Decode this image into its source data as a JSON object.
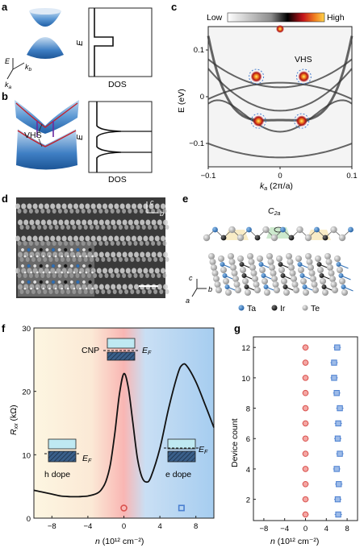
{
  "panels": {
    "a": {
      "label": "a",
      "dos_axis": {
        "y": "E",
        "x": "DOS"
      },
      "axes3d": {
        "E": "E",
        "kb": "k",
        "kb_sub": "b",
        "ka": "k",
        "ka_sub": "a"
      }
    },
    "b": {
      "label": "b",
      "annotation": "VHS",
      "dos_axis": {
        "y": "E",
        "x": "DOS"
      }
    },
    "c": {
      "label": "c",
      "colorbar": {
        "low": "Low",
        "high": "High"
      },
      "annotation": "VHS",
      "ylabel": "E (eV)",
      "xlabel_main": "k",
      "xlabel_sub": "a",
      "xlabel_tail": " (2π/a)"
    },
    "d": {
      "label": "d",
      "axis_c": "c",
      "axis_b": "b"
    },
    "e": {
      "label": "e",
      "symmetry": "C",
      "symmetry_sub": "2a",
      "axes": {
        "c": "c",
        "b": "b",
        "a": "a"
      },
      "legend": [
        {
          "name": "Ta",
          "color": "#2f6fb5"
        },
        {
          "name": "Ir",
          "color": "#1a1a1a"
        },
        {
          "name": "Te",
          "color": "#a9a9a9"
        }
      ]
    },
    "f": {
      "label": "f",
      "cnp": "CNP",
      "ef_main": "E",
      "ef_sub": "F",
      "h_dope": "h dope",
      "e_dope": "e dope",
      "ylabel_main": "R",
      "ylabel_sub": "xx",
      "ylabel_tail": " (kΩ)",
      "xlabel_main": "n",
      "xlabel_tail": " (10¹² cm⁻²)"
    },
    "g": {
      "label": "g",
      "ylabel": "Device count",
      "xlabel_main": "n",
      "xlabel_tail": " (10¹² cm⁻²)"
    }
  },
  "chart_data": [
    {
      "panel": "c",
      "type": "heatmap",
      "xlim": [
        -0.1,
        0.1
      ],
      "ylim": [
        -0.15,
        0.15
      ],
      "x_ticks": [
        "−0.1",
        "0",
        "0.1"
      ],
      "y_ticks": [
        "0.1",
        "0",
        "−0.1"
      ],
      "x_tick_values": [
        -0.1,
        0,
        0.1
      ],
      "y_tick_values": [
        0.1,
        0,
        -0.1
      ],
      "vhs_points": [
        {
          "k": -0.033,
          "E": 0.043
        },
        {
          "k": 0.033,
          "E": 0.043
        },
        {
          "k": -0.03,
          "E": -0.052
        },
        {
          "k": 0.03,
          "E": -0.052
        }
      ]
    },
    {
      "panel": "f",
      "type": "line",
      "xlim": [
        -10,
        10
      ],
      "ylim": [
        0,
        30
      ],
      "x_ticks": [
        "−8",
        "−4",
        "0",
        "4",
        "8"
      ],
      "x_tick_values": [
        -8,
        -4,
        0,
        4,
        8
      ],
      "y_ticks": [
        "0",
        "10",
        "20",
        "30"
      ],
      "y_tick_values": [
        0,
        10,
        20,
        30
      ],
      "x": [
        -10,
        -9,
        -8,
        -7,
        -6,
        -5,
        -4,
        -3,
        -2.5,
        -2,
        -1.5,
        -1,
        -0.5,
        0,
        0.5,
        1,
        1.5,
        2,
        2.5,
        3,
        4,
        5,
        6,
        6.5,
        7,
        8,
        9,
        10
      ],
      "y": [
        4.4,
        4.1,
        3.8,
        3.5,
        3.4,
        3.4,
        3.5,
        3.9,
        4.5,
        5.8,
        8.5,
        13.5,
        19.5,
        22.8,
        20.5,
        15.0,
        9.5,
        6.5,
        5.7,
        6.5,
        11.0,
        17.5,
        22.8,
        24.2,
        24.0,
        21.5,
        18.0,
        14.3
      ],
      "markers": [
        {
          "x": 0,
          "y": 1.6,
          "color": "#d9534f",
          "shape": "circle"
        },
        {
          "x": 6.4,
          "y": 1.6,
          "color": "#4a7fd0",
          "shape": "square"
        }
      ]
    },
    {
      "panel": "g",
      "type": "scatter",
      "xlim": [
        -10,
        10
      ],
      "ylim": [
        0.6,
        12.7
      ],
      "x_ticks": [
        "−8",
        "−4",
        "0",
        "4",
        "8"
      ],
      "x_tick_values": [
        -8,
        -4,
        0,
        4,
        8
      ],
      "y_ticks": [
        "2",
        "4",
        "6",
        "8",
        "10",
        "12"
      ],
      "y_tick_values": [
        2,
        4,
        6,
        8,
        10,
        12
      ],
      "series": [
        {
          "color": "#d9534f",
          "shape": "circle",
          "points": [
            [
              0,
              1
            ],
            [
              0,
              2
            ],
            [
              0,
              3
            ],
            [
              0,
              4
            ],
            [
              0,
              5
            ],
            [
              0,
              6
            ],
            [
              0,
              7
            ],
            [
              0,
              8
            ],
            [
              0,
              9
            ],
            [
              0,
              10
            ],
            [
              0,
              11
            ],
            [
              0,
              12
            ]
          ],
          "err": 0.6
        },
        {
          "color": "#4a7fd0",
          "shape": "square",
          "points": [
            [
              6.3,
              1
            ],
            [
              6.2,
              2
            ],
            [
              6.4,
              3
            ],
            [
              6.0,
              4
            ],
            [
              6.6,
              5
            ],
            [
              6.2,
              6
            ],
            [
              6.3,
              7
            ],
            [
              6.6,
              8
            ],
            [
              6.0,
              9
            ],
            [
              5.5,
              10
            ],
            [
              5.5,
              11
            ],
            [
              6.1,
              12
            ]
          ],
          "err": 0.7
        }
      ]
    }
  ]
}
